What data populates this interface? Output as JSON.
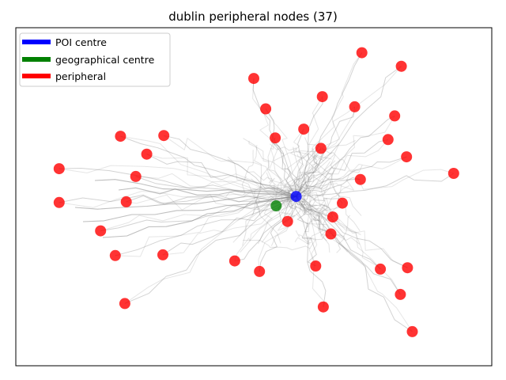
{
  "chart_data": {
    "type": "scatter",
    "title": "dublin peripheral nodes (37)",
    "xlabel": "",
    "ylabel": "",
    "xlim": [
      0,
      100
    ],
    "ylim": [
      0,
      100
    ],
    "grid": false,
    "legend_position": "top-left",
    "colors": {
      "poi": "#0000ff",
      "geo": "#008000",
      "peripheral": "#ff0000",
      "roads": "#808080"
    },
    "legend": [
      {
        "label": "POI centre",
        "color": "#0000ff"
      },
      {
        "label": "geographical centre",
        "color": "#008000"
      },
      {
        "label": "peripheral",
        "color": "#ff0000"
      }
    ],
    "series": [
      {
        "name": "POI centre",
        "points": [
          [
            58.9,
            50.1
          ]
        ]
      },
      {
        "name": "geographical centre",
        "points": [
          [
            54.7,
            47.3
          ]
        ]
      },
      {
        "name": "peripheral",
        "points": [
          [
            72.7,
            92.6
          ],
          [
            81.0,
            88.6
          ],
          [
            50.0,
            85.0
          ],
          [
            64.4,
            79.6
          ],
          [
            52.5,
            76.0
          ],
          [
            71.2,
            76.6
          ],
          [
            79.6,
            73.9
          ],
          [
            22.0,
            67.9
          ],
          [
            31.1,
            68.1
          ],
          [
            54.5,
            67.4
          ],
          [
            60.5,
            70.0
          ],
          [
            64.1,
            64.3
          ],
          [
            78.2,
            66.9
          ],
          [
            27.5,
            62.6
          ],
          [
            82.1,
            61.8
          ],
          [
            92.0,
            56.9
          ],
          [
            9.1,
            58.3
          ],
          [
            25.2,
            56.0
          ],
          [
            72.4,
            55.1
          ],
          [
            68.6,
            48.1
          ],
          [
            9.1,
            48.3
          ],
          [
            23.2,
            48.5
          ],
          [
            66.6,
            44.0
          ],
          [
            17.8,
            39.9
          ],
          [
            57.1,
            42.7
          ],
          [
            66.2,
            39.0
          ],
          [
            20.9,
            32.6
          ],
          [
            30.9,
            32.8
          ],
          [
            46.0,
            31.0
          ],
          [
            51.2,
            27.9
          ],
          [
            63.0,
            29.5
          ],
          [
            76.6,
            28.6
          ],
          [
            82.3,
            29.0
          ],
          [
            22.9,
            18.4
          ],
          [
            64.6,
            17.4
          ],
          [
            80.8,
            21.1
          ],
          [
            83.3,
            10.1
          ]
        ]
      }
    ]
  }
}
